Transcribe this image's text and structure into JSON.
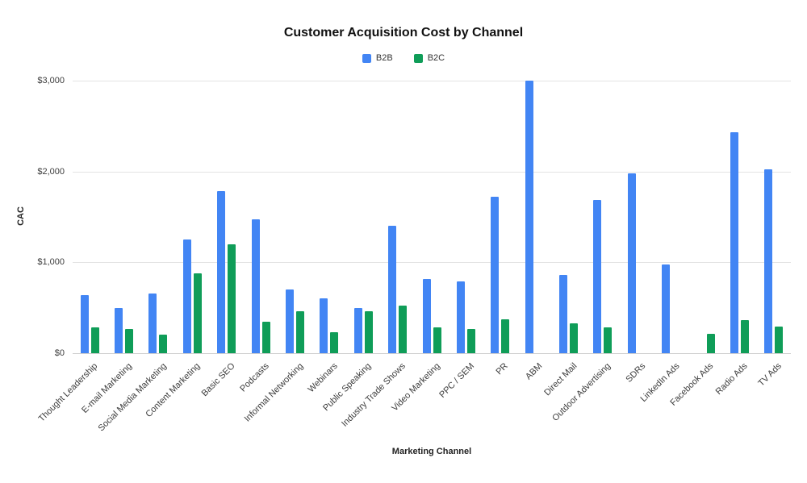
{
  "chart_data": {
    "type": "bar",
    "title": "Customer Acquisition Cost by Channel",
    "xlabel": "Marketing Channel",
    "ylabel": "CAC",
    "ylim": [
      0,
      3000
    ],
    "grid": true,
    "legend_position": "top",
    "yticks": [
      {
        "value": 0,
        "label": "$0"
      },
      {
        "value": 1000,
        "label": "$1,000"
      },
      {
        "value": 2000,
        "label": "$2,000"
      },
      {
        "value": 3000,
        "label": "$3,000"
      }
    ],
    "categories": [
      "Thought Leadership",
      "E-mail Marketing",
      "Social Media Marketing",
      "Content Marketing",
      "Basic SEO",
      "Podcasts",
      "Informal Networking",
      "Webinars",
      "Public Speaking",
      "Industry Trade Shows",
      "Video Marketing",
      "PPC / SEM",
      "PR",
      "ABM",
      "Direct Mail",
      "Outdoor Advertising",
      "SDRs",
      "LinkedIn Ads",
      "Facebook Ads",
      "Radio Ads",
      "TV Ads"
    ],
    "series": [
      {
        "name": "B2B",
        "color": "#4285F4",
        "values": [
          640,
          500,
          660,
          1250,
          1780,
          1470,
          700,
          600,
          500,
          1400,
          820,
          790,
          1720,
          3000,
          860,
          1690,
          1980,
          975,
          0,
          2430,
          2020
        ]
      },
      {
        "name": "B2C",
        "color": "#0F9D58",
        "values": [
          280,
          270,
          200,
          880,
          1200,
          350,
          460,
          230,
          460,
          520,
          280,
          270,
          370,
          0,
          330,
          280,
          0,
          0,
          210,
          360,
          290
        ]
      }
    ]
  }
}
